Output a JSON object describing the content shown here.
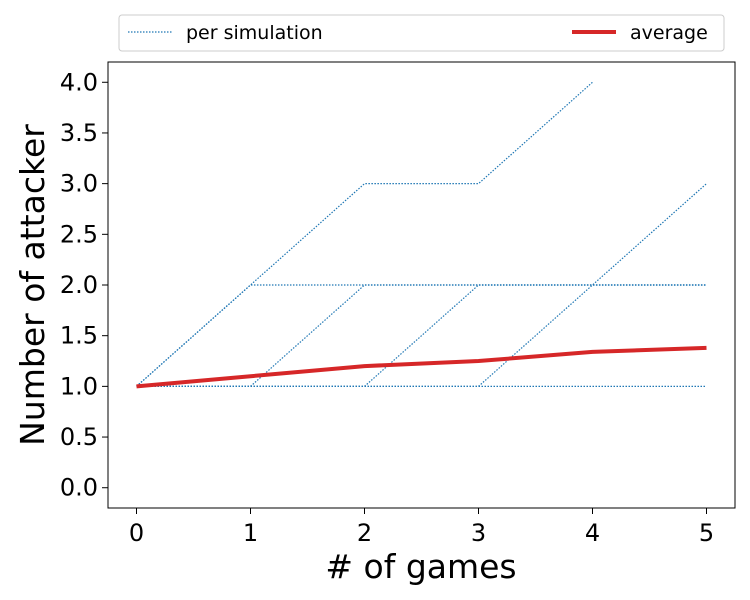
{
  "chart_data": {
    "type": "line",
    "title": "",
    "xlabel": "# of games",
    "ylabel": "Number of attacker",
    "xlim": [
      -0.25,
      5.25
    ],
    "ylim": [
      -0.2,
      4.2
    ],
    "xticks": [
      "0",
      "1",
      "2",
      "3",
      "4",
      "5"
    ],
    "yticks": [
      "0.0",
      "0.5",
      "1.0",
      "1.5",
      "2.0",
      "2.5",
      "3.0",
      "3.5",
      "4.0"
    ],
    "grid": false,
    "legend": {
      "placement": "top-outside",
      "entries": [
        "per simulation",
        "average"
      ]
    },
    "colors": {
      "per_simulation": "#1f77b4",
      "average": "#d62728"
    },
    "simulations": [
      {
        "x": [
          0,
          1,
          2,
          3,
          4
        ],
        "y": [
          1,
          2,
          3,
          3,
          4
        ]
      },
      {
        "x": [
          0,
          1,
          2,
          3,
          4,
          5
        ],
        "y": [
          1,
          2,
          2,
          2,
          2,
          2
        ]
      },
      {
        "x": [
          0,
          1,
          2,
          3,
          4,
          5
        ],
        "y": [
          1,
          1,
          2,
          2,
          2,
          2
        ]
      },
      {
        "x": [
          0,
          1,
          2,
          3,
          4,
          5
        ],
        "y": [
          1,
          1,
          1,
          2,
          2,
          2
        ]
      },
      {
        "x": [
          0,
          1,
          2,
          3,
          4,
          5
        ],
        "y": [
          1,
          1,
          1,
          1,
          2,
          3
        ]
      },
      {
        "x": [
          0,
          1,
          2,
          3,
          4,
          5
        ],
        "y": [
          1,
          1,
          1,
          1,
          1,
          1
        ]
      }
    ],
    "average": {
      "name": "average",
      "x": [
        0,
        1,
        2,
        3,
        4,
        5
      ],
      "y": [
        1.0,
        1.1,
        1.2,
        1.25,
        1.34,
        1.38
      ]
    }
  }
}
